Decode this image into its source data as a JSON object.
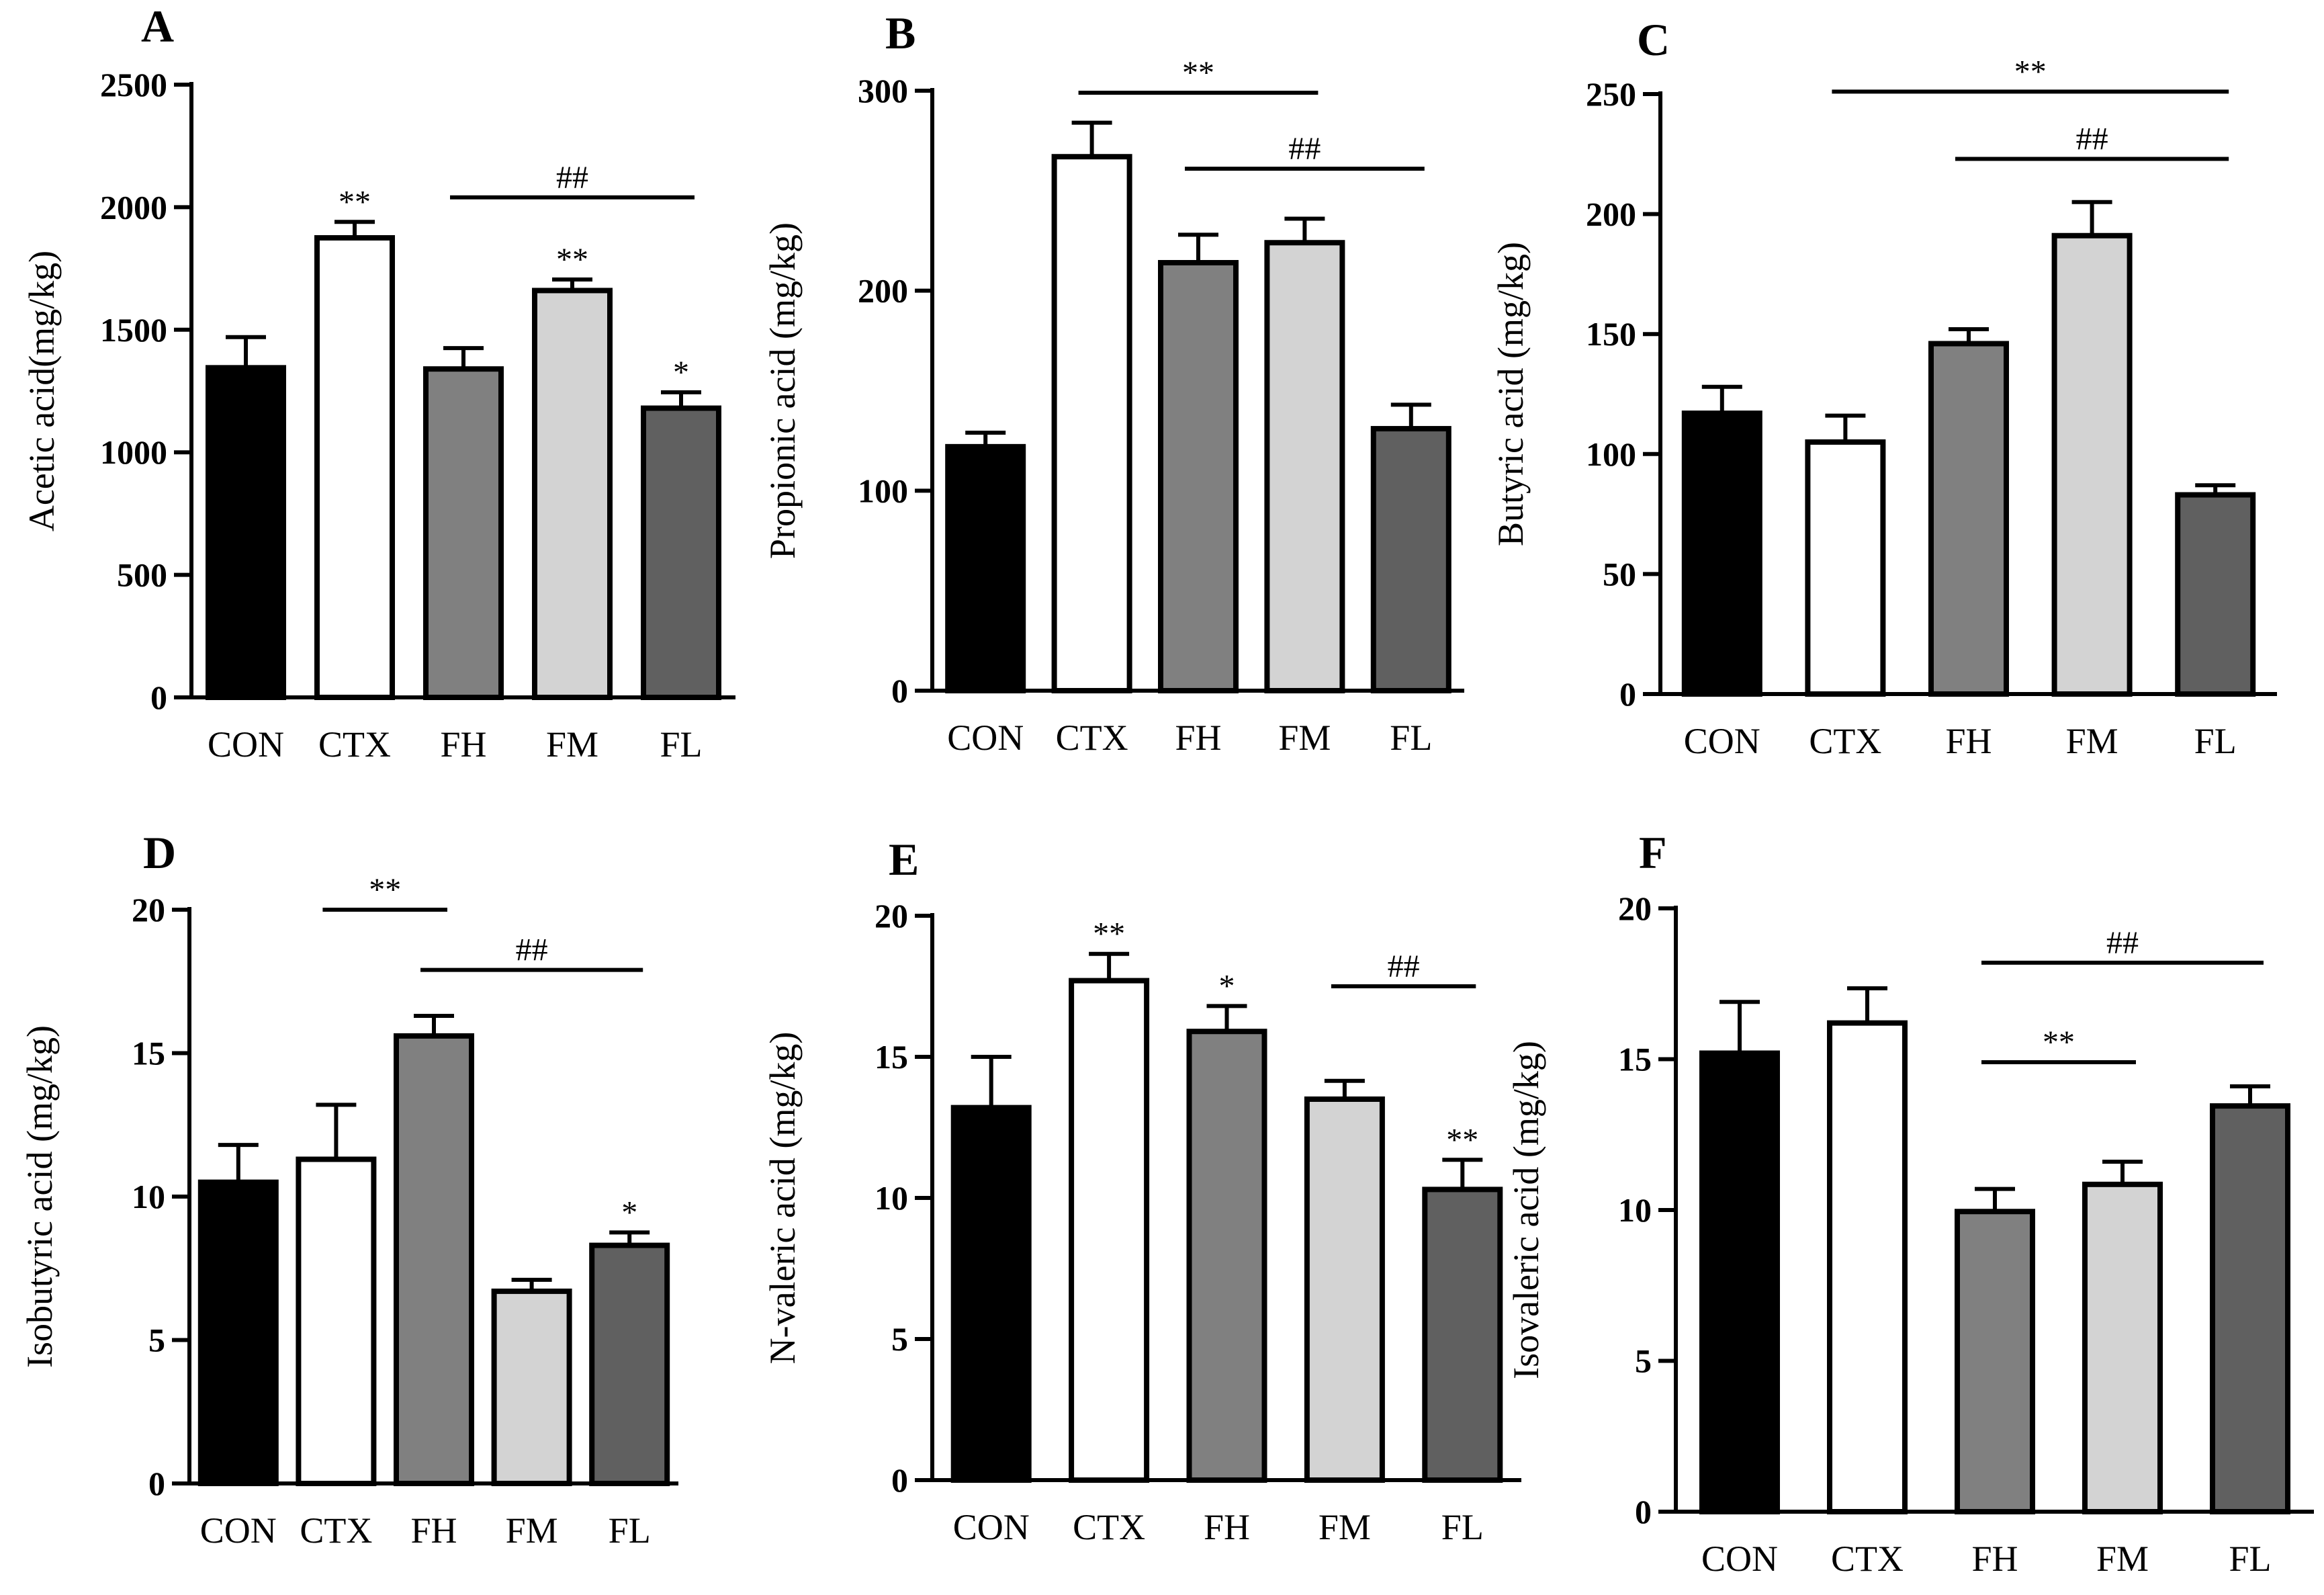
{
  "figure": {
    "description": "Short-chain fatty acid contents (six panels)"
  },
  "colors": {
    "CON": "#000000",
    "CTX": "#ffffff",
    "FH": "#808080",
    "FM": "#d3d3d3",
    "FL": "#606060"
  },
  "chart_data": [
    {
      "panel": "A",
      "type": "bar",
      "categories": [
        "CON",
        "CTX",
        "FH",
        "FM",
        "FL"
      ],
      "values": [
        1345,
        1875,
        1340,
        1660,
        1180
      ],
      "errors": [
        125,
        65,
        85,
        45,
        65
      ],
      "ylabel": "Acetic acid(mg/kg)",
      "ylim": [
        0,
        2500
      ],
      "yticks": [
        "0",
        "500",
        "1000",
        "1500",
        "2000",
        "2500"
      ],
      "bar_marks": [
        {
          "index": 1,
          "text": "**"
        },
        {
          "index": 3,
          "text": "**"
        },
        {
          "index": 4,
          "text": "*"
        }
      ],
      "brackets": [
        {
          "from": 2,
          "to": 4,
          "text": "##",
          "y": 2040
        }
      ]
    },
    {
      "panel": "B",
      "type": "bar",
      "categories": [
        "CON",
        "CTX",
        "FH",
        "FM",
        "FL"
      ],
      "values": [
        122,
        267,
        214,
        224,
        131
      ],
      "errors": [
        7,
        17,
        14,
        12,
        12
      ],
      "ylabel": "Propionic acid (mg/kg)",
      "ylim": [
        0,
        300
      ],
      "yticks": [
        "0",
        "100",
        "200",
        "300"
      ],
      "bar_marks": [],
      "brackets": [
        {
          "from": 1,
          "to": 3,
          "text": "**",
          "y": 299
        },
        {
          "from": 2,
          "to": 4,
          "text": "##",
          "y": 261
        }
      ]
    },
    {
      "panel": "C",
      "type": "bar",
      "categories": [
        "CON",
        "CTX",
        "FH",
        "FM",
        "FL"
      ],
      "values": [
        117,
        105,
        146,
        191,
        83
      ],
      "errors": [
        11,
        11,
        6,
        14,
        4
      ],
      "ylabel": "Butyric acid (mg/kg)",
      "ylim": [
        0,
        250
      ],
      "yticks": [
        "0",
        "50",
        "100",
        "150",
        "200",
        "250"
      ],
      "bar_marks": [],
      "brackets": [
        {
          "from": 1,
          "to": 4,
          "text": "**",
          "y": 251
        },
        {
          "from": 2,
          "to": 4,
          "text": "##",
          "y": 223
        }
      ]
    },
    {
      "panel": "D",
      "type": "bar",
      "categories": [
        "CON",
        "CTX",
        "FH",
        "FM",
        "FL"
      ],
      "values": [
        10.5,
        11.3,
        15.6,
        6.7,
        8.3
      ],
      "errors": [
        1.3,
        1.9,
        0.7,
        0.4,
        0.45
      ],
      "ylabel": "Isobutyric acid (mg/kg)",
      "ylim": [
        0,
        20
      ],
      "yticks": [
        "0",
        "5",
        "10",
        "15",
        "20"
      ],
      "bar_marks": [
        {
          "index": 4,
          "text": "*"
        }
      ],
      "brackets": [
        {
          "from": 1,
          "to": 2,
          "text": "**",
          "y": 20.0
        },
        {
          "from": 2,
          "to": 4,
          "text": "##",
          "y": 17.9
        }
      ]
    },
    {
      "panel": "E",
      "type": "bar",
      "categories": [
        "CON",
        "CTX",
        "FH",
        "FM",
        "FL"
      ],
      "values": [
        13.2,
        17.7,
        15.9,
        13.5,
        10.3
      ],
      "errors": [
        1.8,
        0.95,
        0.9,
        0.65,
        1.05
      ],
      "ylabel": "N-valeric acid (mg/kg)",
      "ylim": [
        0,
        20
      ],
      "yticks": [
        "0",
        "5",
        "10",
        "15",
        "20"
      ],
      "bar_marks": [
        {
          "index": 1,
          "text": "**"
        },
        {
          "index": 2,
          "text": "*"
        },
        {
          "index": 4,
          "text": "**"
        }
      ],
      "brackets": [
        {
          "from": 3,
          "to": 4,
          "text": "##",
          "y": 17.5
        }
      ]
    },
    {
      "panel": "F",
      "type": "bar",
      "categories": [
        "CON",
        "CTX",
        "FH",
        "FM",
        "FL"
      ],
      "values": [
        15.2,
        16.2,
        9.95,
        10.85,
        13.45
      ],
      "errors": [
        1.7,
        1.15,
        0.75,
        0.75,
        0.65
      ],
      "ylabel": "Isovaleric acid (mg/kg)",
      "ylim": [
        0,
        20
      ],
      "yticks": [
        "0",
        "5",
        "10",
        "15",
        "20"
      ],
      "bar_marks": [],
      "brackets": [
        {
          "from": 2,
          "to": 4,
          "text": "##",
          "y": 18.2
        },
        {
          "from": 2,
          "to": 3,
          "text": "**",
          "y": 14.9
        }
      ]
    }
  ]
}
